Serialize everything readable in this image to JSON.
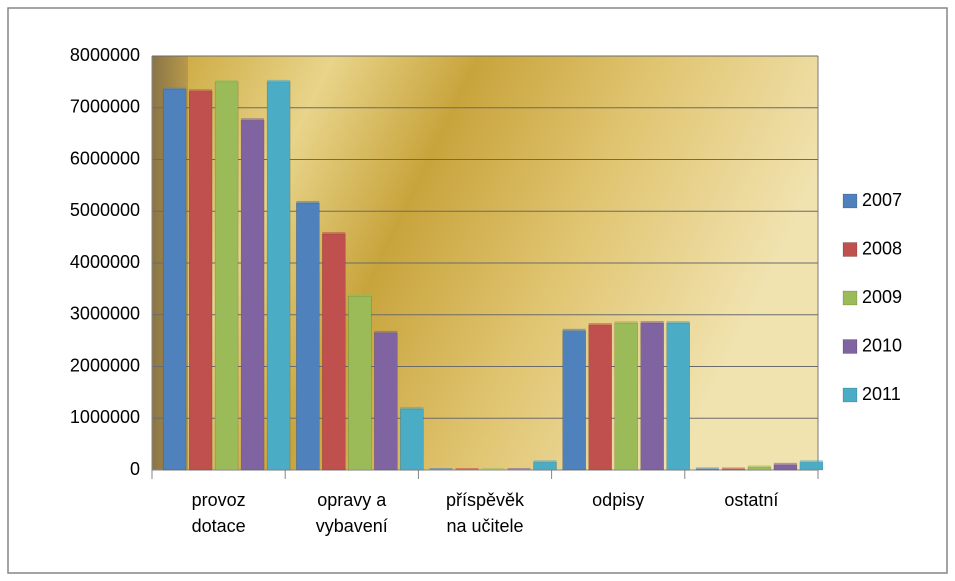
{
  "chart_data": {
    "type": "bar",
    "categories": [
      "provoz dotace",
      "opravy a vybavení",
      "příspěvěk na učitele",
      "odpisy",
      "ostatní"
    ],
    "series": [
      {
        "name": "2007",
        "color": "#4f81bd",
        "values": [
          7350000,
          5160000,
          0,
          2690000,
          10000
        ]
      },
      {
        "name": "2008",
        "color": "#c0504d",
        "values": [
          7320000,
          4560000,
          0,
          2800000,
          10000
        ]
      },
      {
        "name": "2009",
        "color": "#9bbb59",
        "values": [
          7500000,
          3360000,
          0,
          2840000,
          50000
        ]
      },
      {
        "name": "2010",
        "color": "#8064a2",
        "values": [
          6760000,
          2650000,
          0,
          2840000,
          100000
        ]
      },
      {
        "name": "2011",
        "color": "#4bacc6",
        "values": [
          7500000,
          1180000,
          150000,
          2840000,
          150000
        ]
      }
    ],
    "ylim": [
      0,
      8000000
    ],
    "yticks": [
      0,
      1000000,
      2000000,
      3000000,
      4000000,
      5000000,
      6000000,
      7000000,
      8000000
    ],
    "grid": true,
    "legend": "right"
  }
}
